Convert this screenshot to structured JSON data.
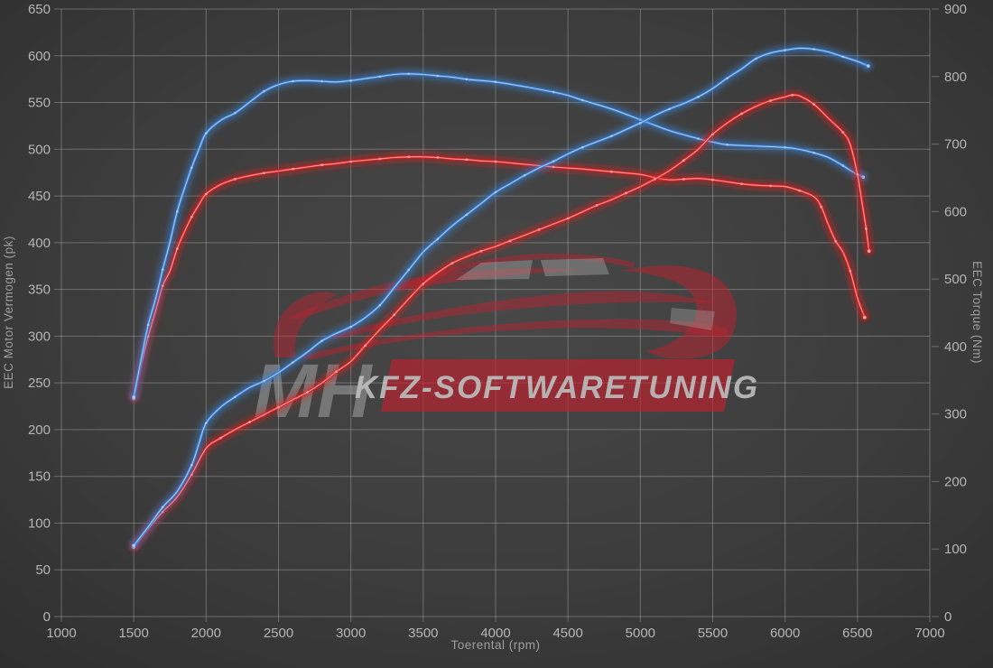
{
  "watermark": {
    "brand_short": "MH",
    "brand_banner": "KFZ-SOFTWARETUNING"
  },
  "colors": {
    "background": "#3c3c3c",
    "grid": "#c2c2c2",
    "tick_text": "#b5b5b5",
    "axis_title_text": "#9d9d9d",
    "curve_blue": "#3c83d8",
    "curve_blue_core": "#a9ccf0",
    "curve_red": "#e11d1d",
    "curve_red_core": "#ffadad",
    "watermark_red": "#c1202e",
    "watermark_gray": "#b9b9b9"
  },
  "chart_data": {
    "type": "line",
    "title": "",
    "xlabel": "Toerental (rpm)",
    "grid": true,
    "legend": "none",
    "x_axis": {
      "min": 1000,
      "max": 7000,
      "ticks": [
        1000,
        1500,
        2000,
        2500,
        3000,
        3500,
        4000,
        4500,
        5000,
        5500,
        6000,
        6500,
        7000
      ]
    },
    "y_axis_left": {
      "label": "EEC Motor Vermogen (pk)",
      "min": 0,
      "max": 650,
      "ticks": [
        0,
        50,
        100,
        150,
        200,
        250,
        300,
        350,
        400,
        450,
        500,
        550,
        600,
        650
      ]
    },
    "y_axis_right": {
      "label": "EEC Torque (Nm)",
      "min": 0,
      "max": 900,
      "ticks": [
        0,
        100,
        200,
        300,
        400,
        500,
        600,
        700,
        800,
        900
      ]
    },
    "series": [
      {
        "name": "torque-original",
        "axis": "right",
        "unit": "Nm",
        "color": "#e11d1d",
        "core": "#ffadad",
        "points": [
          [
            1500,
            323
          ],
          [
            1550,
            372
          ],
          [
            1600,
            415
          ],
          [
            1650,
            452
          ],
          [
            1700,
            490
          ],
          [
            1750,
            512
          ],
          [
            1800,
            545
          ],
          [
            1850,
            570
          ],
          [
            1900,
            592
          ],
          [
            1950,
            610
          ],
          [
            2000,
            626
          ],
          [
            2100,
            640
          ],
          [
            2200,
            648
          ],
          [
            2300,
            653
          ],
          [
            2400,
            657
          ],
          [
            2500,
            660
          ],
          [
            2600,
            663
          ],
          [
            2700,
            666
          ],
          [
            2800,
            669
          ],
          [
            2900,
            671
          ],
          [
            3000,
            674
          ],
          [
            3100,
            676
          ],
          [
            3200,
            678
          ],
          [
            3300,
            680
          ],
          [
            3400,
            681
          ],
          [
            3500,
            681
          ],
          [
            3600,
            680
          ],
          [
            3700,
            678
          ],
          [
            3800,
            677
          ],
          [
            3900,
            675
          ],
          [
            4000,
            674
          ],
          [
            4200,
            670
          ],
          [
            4400,
            666
          ],
          [
            4600,
            663
          ],
          [
            4800,
            659
          ],
          [
            5000,
            655
          ],
          [
            5100,
            650
          ],
          [
            5200,
            647
          ],
          [
            5300,
            648
          ],
          [
            5400,
            649
          ],
          [
            5500,
            647
          ],
          [
            5600,
            644
          ],
          [
            5700,
            641
          ],
          [
            5800,
            639
          ],
          [
            5900,
            638
          ],
          [
            6000,
            637
          ],
          [
            6100,
            631
          ],
          [
            6200,
            622
          ],
          [
            6250,
            607
          ],
          [
            6300,
            580
          ],
          [
            6350,
            556
          ],
          [
            6400,
            540
          ],
          [
            6450,
            512
          ],
          [
            6500,
            472
          ],
          [
            6550,
            443
          ]
        ]
      },
      {
        "name": "torque-modified",
        "axis": "right",
        "unit": "Nm",
        "color": "#3c83d8",
        "core": "#a9ccf0",
        "points": [
          [
            1500,
            325
          ],
          [
            1550,
            380
          ],
          [
            1600,
            432
          ],
          [
            1650,
            470
          ],
          [
            1700,
            514
          ],
          [
            1750,
            555
          ],
          [
            1800,
            600
          ],
          [
            1850,
            634
          ],
          [
            1900,
            665
          ],
          [
            1950,
            692
          ],
          [
            2000,
            716
          ],
          [
            2100,
            735
          ],
          [
            2200,
            746
          ],
          [
            2300,
            762
          ],
          [
            2400,
            778
          ],
          [
            2500,
            788
          ],
          [
            2600,
            793
          ],
          [
            2700,
            794
          ],
          [
            2800,
            793
          ],
          [
            2900,
            792
          ],
          [
            3000,
            794
          ],
          [
            3100,
            797
          ],
          [
            3200,
            800
          ],
          [
            3300,
            803
          ],
          [
            3400,
            804
          ],
          [
            3500,
            803
          ],
          [
            3600,
            801
          ],
          [
            3700,
            799
          ],
          [
            3800,
            796
          ],
          [
            3900,
            794
          ],
          [
            4000,
            792
          ],
          [
            4200,
            785
          ],
          [
            4400,
            777
          ],
          [
            4500,
            772
          ],
          [
            4600,
            765
          ],
          [
            4800,
            752
          ],
          [
            5000,
            736
          ],
          [
            5200,
            720
          ],
          [
            5400,
            708
          ],
          [
            5500,
            703
          ],
          [
            5600,
            699
          ],
          [
            5800,
            697
          ],
          [
            6000,
            695
          ],
          [
            6100,
            692
          ],
          [
            6200,
            687
          ],
          [
            6300,
            680
          ],
          [
            6400,
            668
          ],
          [
            6450,
            661
          ],
          [
            6500,
            655
          ],
          [
            6540,
            651
          ]
        ]
      },
      {
        "name": "power-original",
        "axis": "left",
        "unit": "pk",
        "color": "#e11d1d",
        "core": "#ffadad",
        "points": [
          [
            1500,
            74
          ],
          [
            1600,
            94
          ],
          [
            1700,
            112
          ],
          [
            1800,
            128
          ],
          [
            1900,
            152
          ],
          [
            2000,
            180
          ],
          [
            2100,
            191
          ],
          [
            2200,
            200
          ],
          [
            2300,
            208
          ],
          [
            2400,
            216
          ],
          [
            2500,
            224
          ],
          [
            2600,
            232
          ],
          [
            2700,
            240
          ],
          [
            2800,
            250
          ],
          [
            2900,
            262
          ],
          [
            3000,
            273
          ],
          [
            3100,
            290
          ],
          [
            3200,
            307
          ],
          [
            3300,
            323
          ],
          [
            3400,
            340
          ],
          [
            3500,
            356
          ],
          [
            3600,
            368
          ],
          [
            3700,
            378
          ],
          [
            3800,
            385
          ],
          [
            3900,
            391
          ],
          [
            4000,
            396
          ],
          [
            4100,
            402
          ],
          [
            4200,
            408
          ],
          [
            4300,
            414
          ],
          [
            4400,
            420
          ],
          [
            4500,
            426
          ],
          [
            4600,
            433
          ],
          [
            4700,
            440
          ],
          [
            4800,
            446
          ],
          [
            4900,
            453
          ],
          [
            5000,
            460
          ],
          [
            5100,
            468
          ],
          [
            5200,
            477
          ],
          [
            5300,
            488
          ],
          [
            5400,
            500
          ],
          [
            5500,
            516
          ],
          [
            5600,
            528
          ],
          [
            5700,
            538
          ],
          [
            5800,
            546
          ],
          [
            5900,
            552
          ],
          [
            6000,
            556
          ],
          [
            6050,
            558
          ],
          [
            6100,
            557
          ],
          [
            6200,
            548
          ],
          [
            6300,
            533
          ],
          [
            6400,
            518
          ],
          [
            6450,
            505
          ],
          [
            6500,
            473
          ],
          [
            6530,
            445
          ],
          [
            6560,
            415
          ],
          [
            6580,
            391
          ]
        ]
      },
      {
        "name": "power-modified",
        "axis": "left",
        "unit": "pk",
        "color": "#3c83d8",
        "core": "#a9ccf0",
        "points": [
          [
            1500,
            76
          ],
          [
            1600,
            96
          ],
          [
            1700,
            117
          ],
          [
            1800,
            134
          ],
          [
            1900,
            162
          ],
          [
            1950,
            185
          ],
          [
            2000,
            207
          ],
          [
            2100,
            224
          ],
          [
            2200,
            235
          ],
          [
            2300,
            245
          ],
          [
            2400,
            252
          ],
          [
            2500,
            261
          ],
          [
            2600,
            272
          ],
          [
            2700,
            283
          ],
          [
            2800,
            295
          ],
          [
            2900,
            303
          ],
          [
            3000,
            310
          ],
          [
            3100,
            320
          ],
          [
            3200,
            333
          ],
          [
            3300,
            352
          ],
          [
            3400,
            371
          ],
          [
            3500,
            390
          ],
          [
            3600,
            404
          ],
          [
            3700,
            418
          ],
          [
            3800,
            430
          ],
          [
            3900,
            442
          ],
          [
            4000,
            454
          ],
          [
            4100,
            463
          ],
          [
            4200,
            472
          ],
          [
            4300,
            480
          ],
          [
            4400,
            487
          ],
          [
            4500,
            495
          ],
          [
            4600,
            502
          ],
          [
            4700,
            508
          ],
          [
            4800,
            514
          ],
          [
            4900,
            521
          ],
          [
            5000,
            528
          ],
          [
            5100,
            536
          ],
          [
            5200,
            543
          ],
          [
            5300,
            549
          ],
          [
            5400,
            556
          ],
          [
            5500,
            565
          ],
          [
            5600,
            576
          ],
          [
            5700,
            586
          ],
          [
            5800,
            597
          ],
          [
            5900,
            603
          ],
          [
            6000,
            606
          ],
          [
            6100,
            608
          ],
          [
            6200,
            607
          ],
          [
            6300,
            604
          ],
          [
            6400,
            599
          ],
          [
            6500,
            594
          ],
          [
            6575,
            589
          ]
        ]
      }
    ]
  }
}
